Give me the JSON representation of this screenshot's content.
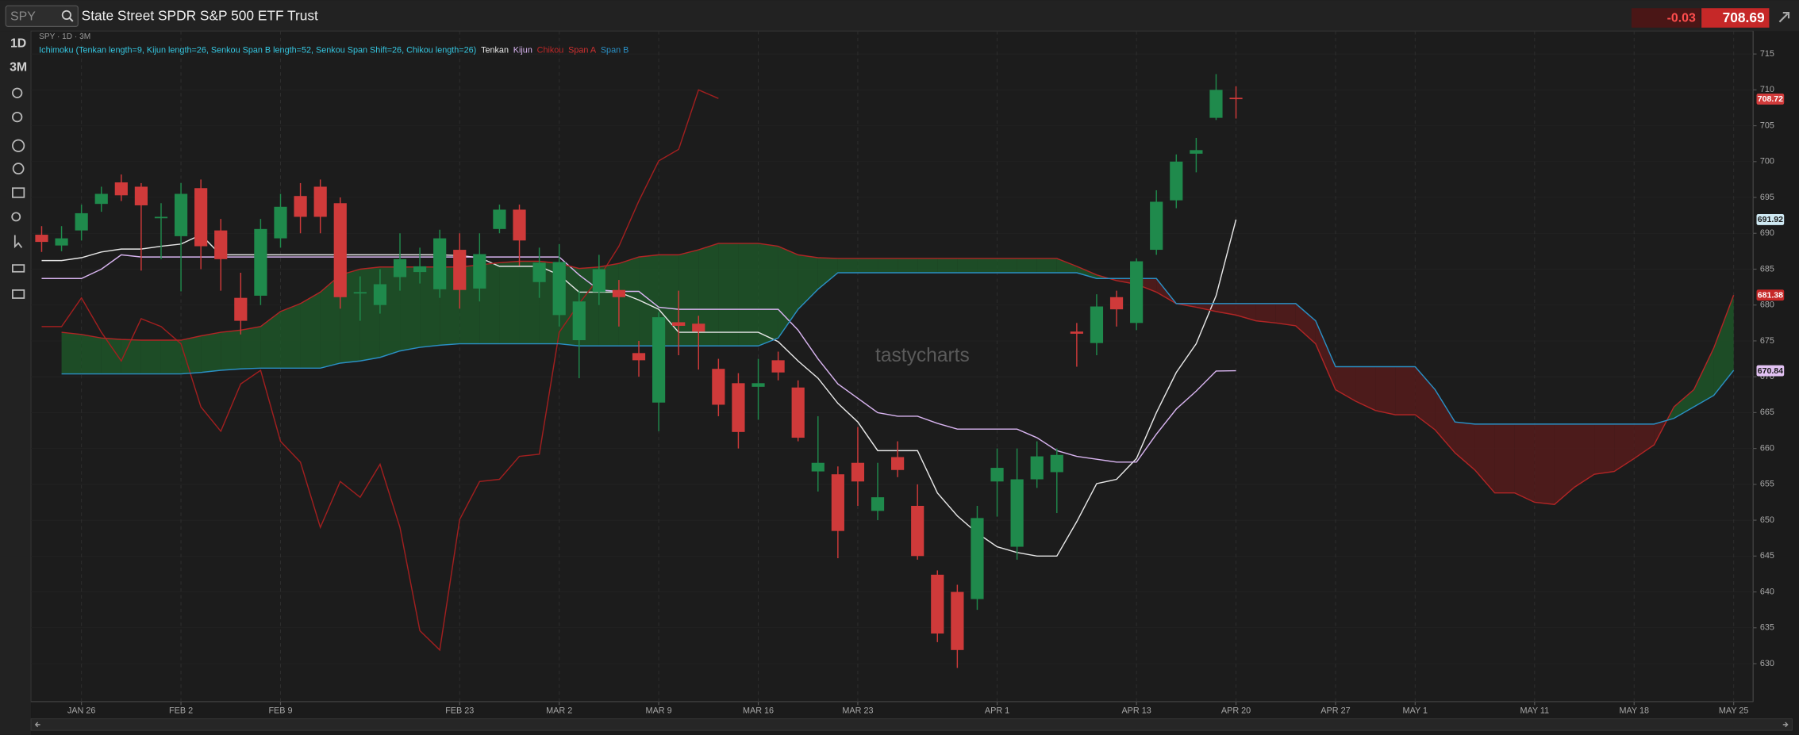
{
  "toolbar": {
    "symbol": "SPY",
    "title": "State Street SPDR S&P 500 ETF Trust",
    "change": "-0.03",
    "last": "708.69",
    "intervals": [
      "1D",
      "3M"
    ]
  },
  "chart_data": {
    "type": "candlestick",
    "subtitle": "SPY · 1D · 3M",
    "indicator": "Ichimoku (Tenkan length=9, Kijun length=26, Senkou Span B length=52, Senkou Span Shift=26, Chikou length=26)",
    "watermark": "tastycharts",
    "x": [
      null,
      null,
      "JAN 26",
      null,
      null,
      null,
      null,
      "FEB 2",
      null,
      null,
      null,
      null,
      "FEB 9",
      null,
      null,
      null,
      null,
      null,
      null,
      null,
      null,
      "FEB 23",
      null,
      null,
      null,
      null,
      "MAR 2",
      null,
      null,
      null,
      null,
      "MAR 9",
      null,
      null,
      null,
      null,
      "MAR 16",
      null,
      null,
      null,
      null,
      "MAR 23",
      null,
      null,
      null,
      null,
      null,
      null,
      "APR 1",
      null,
      null,
      null,
      null,
      null,
      null,
      "APR 13",
      null,
      null,
      null,
      null,
      "APR 20",
      null,
      null,
      null,
      null,
      "APR 27",
      null,
      null,
      null,
      "MAY 1",
      null,
      null,
      null,
      null,
      null,
      "MAY 11",
      null,
      null,
      null,
      null,
      "MAY 18",
      null,
      null,
      null,
      null,
      "MAY 25"
    ],
    "open": [
      689.8,
      688.3,
      690.4,
      694.1,
      697.1,
      696.5,
      692.1,
      689.6,
      696.3,
      690.4,
      681.0,
      681.3,
      689.3,
      695.2,
      696.5,
      694.2,
      681.7,
      680.0,
      683.9,
      684.6,
      682.2,
      687.7,
      682.3,
      690.6,
      693.3,
      683.2,
      678.6,
      675.1,
      681.8,
      682.1,
      673.3,
      666.4,
      677.6,
      677.4,
      671.1,
      669.1,
      668.6,
      672.3,
      668.5,
      656.8,
      656.4,
      658.0,
      651.3,
      658.8,
      652.0,
      642.4,
      640.0,
      639.0,
      655.4,
      646.3,
      655.7,
      656.7,
      676.3,
      674.7,
      681.1,
      677.5,
      687.7,
      694.6,
      701.1,
      706.1,
      708.9,
      null,
      null,
      null,
      null,
      null,
      null,
      null,
      null,
      null,
      null,
      null,
      null,
      null,
      null,
      null,
      null,
      null,
      null,
      null,
      null,
      null,
      null,
      null,
      null,
      null
    ],
    "high": [
      691.0,
      691.0,
      694.0,
      696.5,
      698.2,
      697.0,
      694.2,
      697.0,
      697.5,
      692.0,
      684.5,
      692.0,
      695.5,
      697.0,
      697.5,
      695.0,
      684.0,
      685.0,
      690.0,
      688.0,
      690.5,
      690.0,
      690.0,
      694.0,
      694.0,
      688.0,
      688.5,
      682.0,
      687.0,
      683.5,
      675.0,
      679.0,
      682.0,
      678.5,
      672.5,
      670.5,
      672.5,
      673.5,
      669.5,
      664.5,
      657.5,
      663.0,
      658.0,
      661.0,
      655.0,
      643.0,
      641.0,
      652.0,
      660.0,
      660.0,
      661.0,
      660.0,
      677.5,
      681.5,
      682.0,
      686.5,
      696.0,
      701.0,
      703.3,
      712.2,
      710.5,
      null,
      null,
      null,
      null,
      null,
      null,
      null,
      null,
      null,
      null,
      null,
      null,
      null,
      null,
      null,
      null,
      null,
      null,
      null,
      null,
      null,
      null,
      null,
      null,
      null
    ],
    "low": [
      687.4,
      687.5,
      689.0,
      693.0,
      694.5,
      684.8,
      686.4,
      681.9,
      685.0,
      682.0,
      675.9,
      680.0,
      688.0,
      690.0,
      690.0,
      679.5,
      677.8,
      678.8,
      682.0,
      683.0,
      681.0,
      679.5,
      680.5,
      690.0,
      685.5,
      681.0,
      677.0,
      669.8,
      680.0,
      677.0,
      670.0,
      662.4,
      673.0,
      671.0,
      664.5,
      660.0,
      664.0,
      669.5,
      661.0,
      654.0,
      644.7,
      652.0,
      650.0,
      656.0,
      644.5,
      633.0,
      629.4,
      637.5,
      650.5,
      644.5,
      654.5,
      651.0,
      671.4,
      673.0,
      677.0,
      676.5,
      687.0,
      693.5,
      698.5,
      705.8,
      706.0,
      null,
      null,
      null,
      null,
      null,
      null,
      null,
      null,
      null,
      null,
      null,
      null,
      null,
      null,
      null,
      null,
      null,
      null,
      null,
      null,
      null,
      null,
      null,
      null,
      null
    ],
    "close": [
      688.8,
      689.3,
      692.8,
      695.5,
      695.3,
      693.9,
      692.3,
      695.5,
      688.2,
      686.4,
      677.8,
      690.6,
      693.7,
      692.3,
      692.3,
      681.1,
      681.8,
      682.9,
      686.4,
      685.4,
      689.3,
      682.1,
      687.1,
      693.3,
      689.0,
      685.9,
      686.0,
      680.5,
      685.0,
      681.1,
      672.3,
      678.3,
      677.1,
      676.3,
      666.1,
      662.3,
      669.1,
      670.6,
      661.5,
      658.0,
      648.5,
      655.4,
      653.2,
      657.0,
      645.0,
      634.2,
      631.9,
      650.3,
      657.3,
      655.7,
      658.9,
      659.1,
      676.0,
      679.8,
      679.4,
      686.1,
      694.4,
      700.0,
      701.6,
      710.0,
      708.7,
      null,
      null,
      null,
      null,
      null,
      null,
      null,
      null,
      null,
      null,
      null,
      null,
      null,
      null,
      null,
      null,
      null,
      null,
      null,
      null,
      null,
      null,
      null,
      null,
      null
    ],
    "up_color": "#1f8a4c",
    "down_color": "#cf3a3a",
    "cloud_up_color": "#1e5c2a",
    "cloud_down_color": "#5c1b1b",
    "series": [
      {
        "name": "Tenkan",
        "color": "#e6e6e6",
        "values": [
          686.2,
          686.2,
          686.6,
          687.4,
          687.8,
          687.8,
          688.2,
          688.5,
          689.8,
          687.0,
          687.0,
          687.0,
          687.0,
          687.0,
          687.0,
          687.0,
          687.0,
          687.0,
          687.0,
          687.0,
          687.0,
          686.9,
          686.6,
          685.4,
          685.4,
          685.4,
          684.2,
          681.8,
          681.8,
          681.8,
          680.7,
          679.4,
          676.2,
          676.2,
          676.2,
          676.2,
          676.2,
          674.9,
          672.2,
          669.8,
          666.3,
          663.7,
          659.7,
          659.7,
          659.7,
          653.8,
          650.6,
          648.2,
          646.3,
          645.5,
          645.0,
          645.0,
          649.8,
          655.1,
          655.7,
          658.6,
          665.0,
          670.6,
          674.6,
          681.3,
          691.92,
          null,
          null,
          null,
          null,
          null,
          null,
          null,
          null,
          null,
          null,
          null,
          null,
          null,
          null,
          null,
          null,
          null,
          null,
          null,
          null,
          null,
          null,
          null,
          null,
          null
        ]
      },
      {
        "name": "Kijun",
        "color": "#d8b4f0",
        "values": [
          683.7,
          683.7,
          683.7,
          685.0,
          687.0,
          686.7,
          686.7,
          686.7,
          686.7,
          686.7,
          686.7,
          686.7,
          686.7,
          686.7,
          686.7,
          686.7,
          686.7,
          686.7,
          686.7,
          686.7,
          686.7,
          686.7,
          686.7,
          686.7,
          686.7,
          686.7,
          686.7,
          684.2,
          682.1,
          681.9,
          681.9,
          679.7,
          679.4,
          679.4,
          679.4,
          679.4,
          679.4,
          679.4,
          676.5,
          672.5,
          669.0,
          667.0,
          665.0,
          664.5,
          664.5,
          663.5,
          662.7,
          662.7,
          662.7,
          662.7,
          661.5,
          659.7,
          658.9,
          658.5,
          658.1,
          658.1,
          662.0,
          665.5,
          668.0,
          670.8,
          670.84,
          null,
          null,
          null,
          null,
          null,
          null,
          null,
          null,
          null,
          null,
          null,
          null,
          null,
          null,
          null,
          null,
          null,
          null,
          null,
          null,
          null,
          null,
          null,
          null,
          null
        ]
      },
      {
        "name": "Chikou",
        "color": "#a01f1f",
        "values": [
          677.0,
          677.0,
          681.0,
          676.2,
          672.2,
          678.1,
          677.0,
          674.6,
          665.8,
          662.4,
          669.0,
          670.9,
          661.0,
          658.1,
          649.0,
          655.4,
          653.2,
          657.8,
          649.0,
          634.6,
          631.9,
          650.1,
          655.4,
          655.7,
          658.9,
          659.2,
          676.2,
          680.2,
          683.8,
          688.2,
          694.5,
          700.1,
          701.7,
          710.0,
          708.8,
          null,
          null,
          null,
          null,
          null,
          null,
          null,
          null,
          null,
          null,
          null,
          null,
          null,
          null,
          null,
          null,
          null,
          null,
          null,
          null,
          null,
          null,
          null,
          null,
          null,
          null,
          null,
          null,
          null,
          null,
          null,
          null,
          null,
          null,
          null,
          null,
          null,
          null,
          null,
          null,
          null,
          null,
          null,
          null,
          null,
          null,
          null,
          null,
          null,
          null,
          null
        ]
      },
      {
        "name": "Span A",
        "color": "#b02525",
        "values": [
          null,
          676.2,
          675.9,
          675.4,
          675.2,
          675.1,
          675.1,
          675.1,
          675.7,
          676.2,
          676.5,
          677.0,
          679.1,
          680.2,
          681.8,
          684.2,
          685.0,
          685.3,
          685.3,
          685.3,
          685.3,
          685.3,
          685.6,
          685.9,
          686.1,
          686.1,
          685.8,
          685.1,
          685.3,
          685.8,
          686.7,
          687.0,
          687.0,
          687.7,
          688.6,
          688.6,
          688.6,
          688.2,
          687.0,
          686.6,
          686.5,
          686.5,
          686.5,
          686.5,
          686.5,
          686.5,
          686.5,
          686.5,
          686.5,
          686.5,
          686.5,
          686.5,
          685.4,
          684.2,
          683.4,
          682.9,
          681.8,
          680.2,
          679.7,
          679.1,
          678.6,
          677.8,
          677.5,
          677.1,
          674.6,
          668.2,
          666.6,
          665.3,
          664.7,
          664.7,
          662.6,
          659.4,
          657.0,
          653.8,
          653.8,
          652.5,
          652.2,
          654.6,
          656.4,
          656.8,
          658.6,
          660.5,
          665.8,
          668.2,
          674.0,
          681.38
        ]
      },
      {
        "name": "Span B",
        "color": "#2a8fc4",
        "values": [
          null,
          670.4,
          670.4,
          670.4,
          670.4,
          670.4,
          670.4,
          670.4,
          670.6,
          670.9,
          671.1,
          671.2,
          671.2,
          671.2,
          671.2,
          671.9,
          672.2,
          672.7,
          673.6,
          674.1,
          674.4,
          674.6,
          674.6,
          674.6,
          674.6,
          674.6,
          674.6,
          674.3,
          674.3,
          674.3,
          674.3,
          674.3,
          674.3,
          674.3,
          674.3,
          674.3,
          674.3,
          675.4,
          679.4,
          682.2,
          684.5,
          684.5,
          684.5,
          684.5,
          684.5,
          684.5,
          684.5,
          684.5,
          684.5,
          684.5,
          684.5,
          684.5,
          684.5,
          683.7,
          683.7,
          683.7,
          683.7,
          680.2,
          680.2,
          680.2,
          680.2,
          680.2,
          680.2,
          680.2,
          677.8,
          671.4,
          671.4,
          671.4,
          671.4,
          671.4,
          668.2,
          663.7,
          663.4,
          663.4,
          663.4,
          663.4,
          663.4,
          663.4,
          663.4,
          663.4,
          663.4,
          663.4,
          664.2,
          665.8,
          667.4,
          670.9
        ]
      }
    ],
    "price_tags": [
      {
        "value": 708.72,
        "color": "#d13b3b",
        "text_color": "#ffffff"
      },
      {
        "value": 691.92,
        "color": "#cfe9f3",
        "text_color": "#1a1a1a"
      },
      {
        "value": 681.38,
        "color": "#c62828",
        "text_color": "#ffffff"
      },
      {
        "value": 670.84,
        "color": "#e2c2f3",
        "text_color": "#1a1a1a"
      }
    ],
    "ylim": [
      624.7,
      718.2
    ],
    "yticks": [
      630,
      635,
      640,
      645,
      650,
      655,
      660,
      665,
      670,
      675,
      680,
      685,
      690,
      695,
      700,
      705,
      710,
      715
    ],
    "grid": true
  }
}
